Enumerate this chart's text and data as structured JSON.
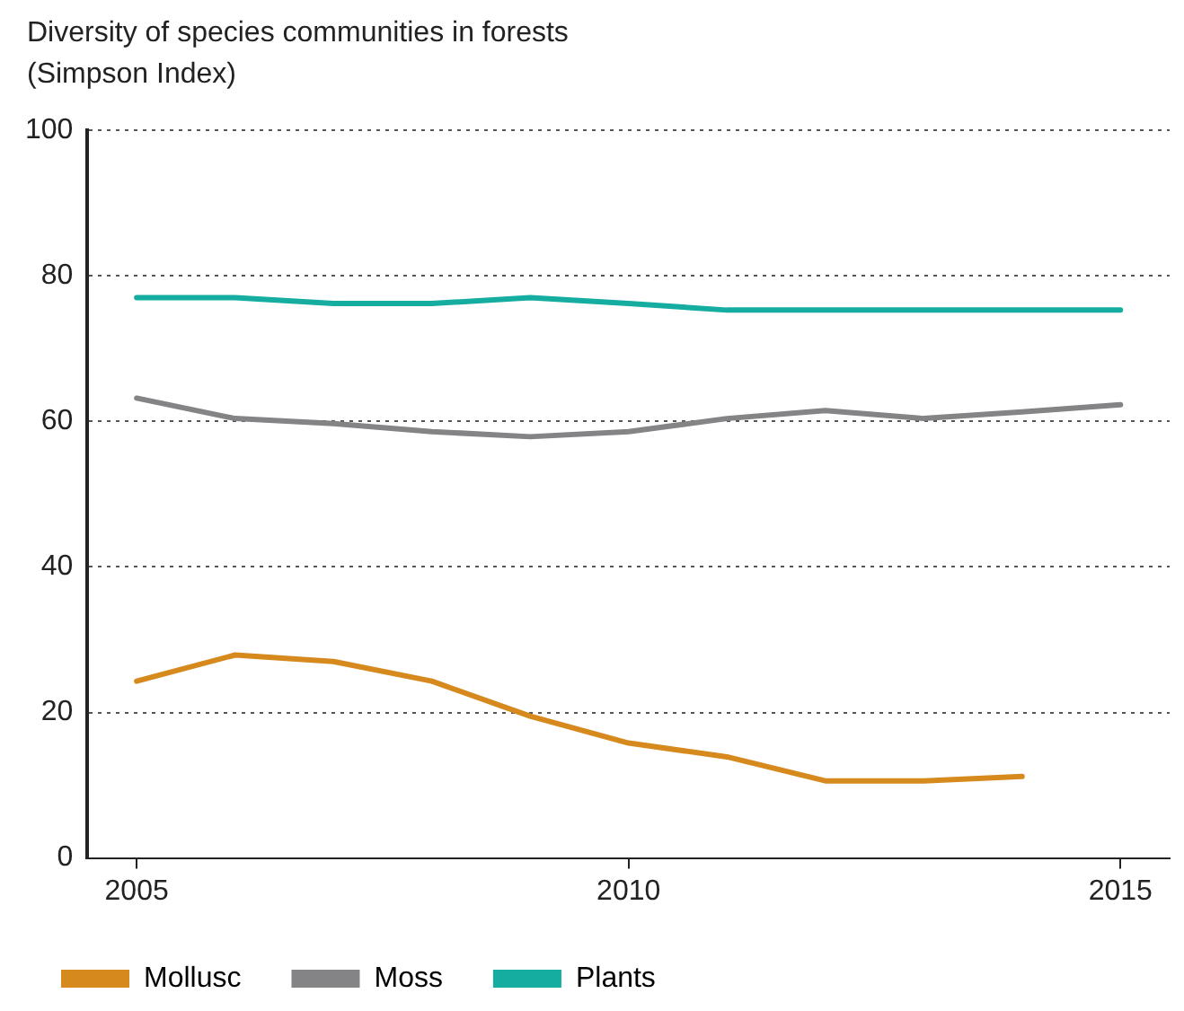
{
  "chart_data": {
    "type": "line",
    "title": "Diversity of species communities in forests",
    "ylabel": "(Simpson Index)",
    "x": [
      2005,
      2006,
      2007,
      2008,
      2009,
      2010,
      2011,
      2012,
      2013,
      2014,
      2015
    ],
    "series": [
      {
        "name": "Mollusc",
        "color": "#d68a1e",
        "values": [
          24.3,
          27.9,
          27,
          24.3,
          19.5,
          15.8,
          13.9,
          10.6,
          10.6,
          11.2,
          null
        ]
      },
      {
        "name": "Moss",
        "color": "#848487",
        "values": [
          63.2,
          60.4,
          59.7,
          58.6,
          57.9,
          58.6,
          60.4,
          61.5,
          60.4,
          61.3,
          62.3
        ]
      },
      {
        "name": "Plants",
        "color": "#14ada0",
        "values": [
          77,
          77,
          76.2,
          76.2,
          77,
          76.2,
          75.3,
          75.3,
          75.3,
          75.3,
          75.3
        ]
      }
    ],
    "xlim": [
      2004.5,
      2015.5
    ],
    "xticks": [
      2005,
      2010,
      2015
    ],
    "ylim": [
      0,
      100
    ],
    "yticks": [
      0,
      20,
      40,
      60,
      80,
      100
    ],
    "grid": "y",
    "legend": "bottom left",
    "marker": "none",
    "line_style": "solid"
  }
}
